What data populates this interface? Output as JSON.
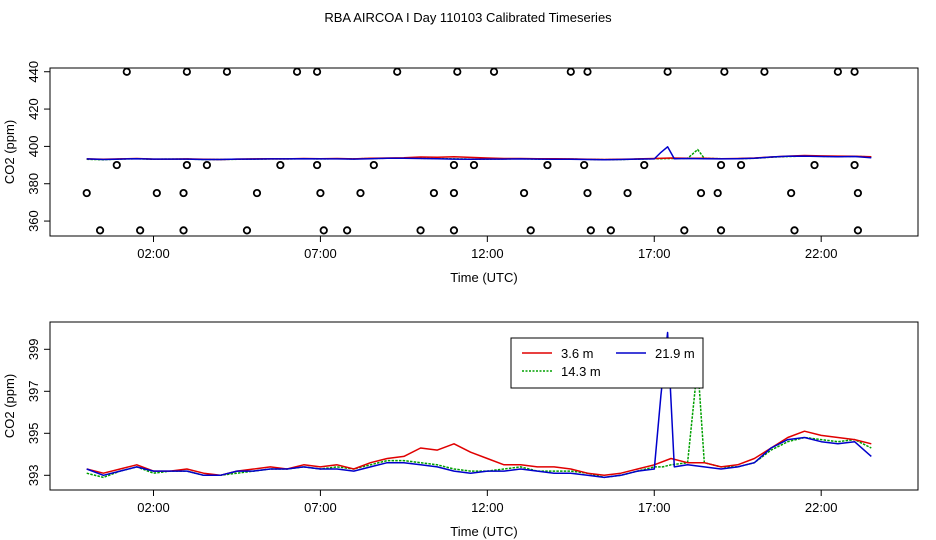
{
  "title": "RBA AIRCOA I  Day 110103  Calibrated Timeseries",
  "colors": {
    "s36": "#e00000",
    "s143": "#00a000",
    "s219": "#0000cc"
  },
  "chart_data": [
    {
      "type": "scatter",
      "panel": "top",
      "xlabel": "Time (UTC)",
      "ylabel": "CO2 (ppm)",
      "xlim": [
        -1.1,
        24.9
      ],
      "ylim": [
        352,
        442
      ],
      "xticks": [
        2,
        7,
        12,
        17,
        22
      ],
      "xtick_labels": [
        "02:00",
        "07:00",
        "12:00",
        "17:00",
        "22:00"
      ],
      "yticks": [
        360,
        380,
        400,
        420,
        440
      ],
      "ytick_labels": [
        "360",
        "380",
        "400",
        "420",
        "440"
      ],
      "flag_points": [
        {
          "x": 1.2,
          "y": 440
        },
        {
          "x": 3.0,
          "y": 440
        },
        {
          "x": 4.2,
          "y": 440
        },
        {
          "x": 6.3,
          "y": 440
        },
        {
          "x": 6.9,
          "y": 440
        },
        {
          "x": 9.3,
          "y": 440
        },
        {
          "x": 11.1,
          "y": 440
        },
        {
          "x": 12.2,
          "y": 440
        },
        {
          "x": 14.5,
          "y": 440
        },
        {
          "x": 15.0,
          "y": 440
        },
        {
          "x": 17.4,
          "y": 440
        },
        {
          "x": 19.1,
          "y": 440
        },
        {
          "x": 20.3,
          "y": 440
        },
        {
          "x": 22.5,
          "y": 440
        },
        {
          "x": 23.0,
          "y": 440
        },
        {
          "x": 0.9,
          "y": 390
        },
        {
          "x": 3.0,
          "y": 390
        },
        {
          "x": 3.6,
          "y": 390
        },
        {
          "x": 5.8,
          "y": 390
        },
        {
          "x": 6.9,
          "y": 390
        },
        {
          "x": 8.6,
          "y": 390
        },
        {
          "x": 11.0,
          "y": 390
        },
        {
          "x": 11.6,
          "y": 390
        },
        {
          "x": 13.8,
          "y": 390
        },
        {
          "x": 14.9,
          "y": 390
        },
        {
          "x": 16.7,
          "y": 390
        },
        {
          "x": 19.0,
          "y": 390
        },
        {
          "x": 19.6,
          "y": 390
        },
        {
          "x": 21.8,
          "y": 390
        },
        {
          "x": 23.0,
          "y": 390
        },
        {
          "x": 0.0,
          "y": 375
        },
        {
          "x": 2.1,
          "y": 375
        },
        {
          "x": 2.9,
          "y": 375
        },
        {
          "x": 5.1,
          "y": 375
        },
        {
          "x": 7.0,
          "y": 375
        },
        {
          "x": 8.2,
          "y": 375
        },
        {
          "x": 10.4,
          "y": 375
        },
        {
          "x": 11.0,
          "y": 375
        },
        {
          "x": 13.1,
          "y": 375
        },
        {
          "x": 15.0,
          "y": 375
        },
        {
          "x": 16.2,
          "y": 375
        },
        {
          "x": 18.4,
          "y": 375
        },
        {
          "x": 18.9,
          "y": 375
        },
        {
          "x": 21.1,
          "y": 375
        },
        {
          "x": 23.1,
          "y": 375
        },
        {
          "x": 0.4,
          "y": 355
        },
        {
          "x": 1.6,
          "y": 355
        },
        {
          "x": 2.9,
          "y": 355
        },
        {
          "x": 4.8,
          "y": 355
        },
        {
          "x": 7.1,
          "y": 355
        },
        {
          "x": 7.8,
          "y": 355
        },
        {
          "x": 10.0,
          "y": 355
        },
        {
          "x": 11.0,
          "y": 355
        },
        {
          "x": 13.3,
          "y": 355
        },
        {
          "x": 15.1,
          "y": 355
        },
        {
          "x": 15.7,
          "y": 355
        },
        {
          "x": 17.9,
          "y": 355
        },
        {
          "x": 19.0,
          "y": 355
        },
        {
          "x": 21.2,
          "y": 355
        },
        {
          "x": 23.1,
          "y": 355
        }
      ],
      "series_ref": "shared_series"
    },
    {
      "type": "line",
      "panel": "bottom",
      "xlabel": "Time (UTC)",
      "ylabel": "CO2 (ppm)",
      "xlim": [
        -1.1,
        24.9
      ],
      "ylim": [
        392.3,
        400.3
      ],
      "xticks": [
        2,
        7,
        12,
        17,
        22
      ],
      "xtick_labels": [
        "02:00",
        "07:00",
        "12:00",
        "17:00",
        "22:00"
      ],
      "yticks": [
        393,
        395,
        397,
        399
      ],
      "ytick_labels": [
        "393",
        "395",
        "397",
        "399"
      ],
      "legend": {
        "position": "top-center",
        "entries": [
          {
            "label": "3.6 m",
            "series": "s36"
          },
          {
            "label": "21.9 m",
            "series": "s219"
          },
          {
            "label": "14.3 m",
            "series": "s143"
          }
        ]
      },
      "series_ref": "shared_series"
    }
  ],
  "shared_series": {
    "s36": {
      "name": "3.6 m",
      "x": [
        0,
        0.5,
        1,
        1.5,
        2,
        2.5,
        3,
        3.5,
        4,
        4.5,
        5,
        5.5,
        6,
        6.5,
        7,
        7.5,
        8,
        8.5,
        9,
        9.5,
        10,
        10.5,
        11,
        11.5,
        12,
        12.5,
        13,
        13.5,
        14,
        14.5,
        15,
        15.5,
        16,
        16.5,
        17,
        17.5,
        18,
        18.5,
        19,
        19.5,
        20,
        20.5,
        21,
        21.5,
        22,
        22.5,
        23,
        23.5
      ],
      "y": [
        393.3,
        393.1,
        393.3,
        393.5,
        393.2,
        393.2,
        393.3,
        393.1,
        393.0,
        393.2,
        393.3,
        393.4,
        393.3,
        393.5,
        393.4,
        393.5,
        393.3,
        393.6,
        393.8,
        393.9,
        394.3,
        394.2,
        394.5,
        394.1,
        393.8,
        393.5,
        393.5,
        393.4,
        393.4,
        393.3,
        393.1,
        393.0,
        393.1,
        393.3,
        393.5,
        393.8,
        393.6,
        393.6,
        393.4,
        393.5,
        393.8,
        394.3,
        394.8,
        395.1,
        394.9,
        394.8,
        394.7,
        394.5
      ]
    },
    "s143": {
      "name": "14.3 m",
      "x": [
        0,
        0.5,
        1,
        1.5,
        2,
        2.5,
        3,
        3.5,
        4,
        4.5,
        5,
        5.5,
        6,
        6.5,
        7,
        7.5,
        8,
        8.5,
        9,
        9.5,
        10,
        10.5,
        11,
        11.5,
        12,
        12.5,
        13,
        13.5,
        14,
        14.5,
        15,
        15.5,
        16,
        16.5,
        17,
        17.25,
        17.5,
        18,
        18.3,
        18.5,
        19,
        19.5,
        20,
        20.5,
        21,
        21.5,
        22,
        22.5,
        23,
        23.5
      ],
      "y": [
        393.1,
        392.9,
        393.2,
        393.4,
        393.1,
        393.2,
        393.2,
        393.0,
        393.0,
        393.1,
        393.2,
        393.3,
        393.3,
        393.4,
        393.3,
        393.4,
        393.3,
        393.5,
        393.7,
        393.7,
        393.6,
        393.5,
        393.3,
        393.2,
        393.2,
        393.3,
        393.4,
        393.2,
        393.2,
        393.2,
        393.1,
        392.9,
        393.0,
        393.2,
        393.4,
        393.4,
        393.5,
        393.6,
        398.3,
        393.6,
        393.4,
        393.4,
        393.6,
        394.2,
        394.6,
        394.8,
        394.7,
        394.6,
        394.7,
        394.3
      ]
    },
    "s219": {
      "name": "21.9 m",
      "x": [
        0,
        0.5,
        1,
        1.5,
        2,
        2.5,
        3,
        3.5,
        4,
        4.5,
        5,
        5.5,
        6,
        6.5,
        7,
        7.5,
        8,
        8.5,
        9,
        9.5,
        10,
        10.5,
        11,
        11.5,
        12,
        12.5,
        13,
        13.5,
        14,
        14.5,
        15,
        15.5,
        16,
        16.5,
        17,
        17.2,
        17.4,
        17.6,
        18,
        18.5,
        19,
        19.5,
        20,
        20.5,
        21,
        21.5,
        22,
        22.5,
        23,
        23.5
      ],
      "y": [
        393.3,
        393.0,
        393.2,
        393.4,
        393.2,
        393.2,
        393.2,
        393.0,
        393.0,
        393.2,
        393.2,
        393.3,
        393.3,
        393.4,
        393.3,
        393.3,
        393.2,
        393.4,
        393.6,
        393.6,
        393.5,
        393.4,
        393.2,
        393.1,
        393.2,
        393.2,
        393.3,
        393.2,
        393.1,
        393.1,
        393.0,
        392.9,
        393.0,
        393.2,
        393.3,
        396.8,
        399.8,
        393.4,
        393.5,
        393.4,
        393.3,
        393.4,
        393.6,
        394.3,
        394.7,
        394.8,
        394.6,
        394.5,
        394.6,
        393.9
      ]
    }
  }
}
